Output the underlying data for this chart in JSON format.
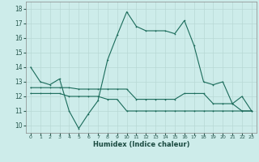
{
  "xlabel": "Humidex (Indice chaleur)",
  "ylabel": "",
  "bg_color": "#cdecea",
  "grid_color": "#b8d8d5",
  "line_color": "#1a6b5a",
  "xlim": [
    -0.5,
    23.5
  ],
  "ylim": [
    9.5,
    18.5
  ],
  "yticks": [
    10,
    11,
    12,
    13,
    14,
    15,
    16,
    17,
    18
  ],
  "xticks": [
    0,
    1,
    2,
    3,
    4,
    5,
    6,
    7,
    8,
    9,
    10,
    11,
    12,
    13,
    14,
    15,
    16,
    17,
    18,
    19,
    20,
    21,
    22,
    23
  ],
  "curve1_x": [
    0,
    1,
    2,
    3,
    4,
    5,
    6,
    7,
    8,
    9,
    10,
    11,
    12,
    13,
    14,
    15,
    16,
    17,
    18,
    19,
    20,
    21,
    22,
    23
  ],
  "curve1_y": [
    14.0,
    13.0,
    12.8,
    13.2,
    11.0,
    9.8,
    10.8,
    11.7,
    14.5,
    16.2,
    17.8,
    16.8,
    16.5,
    16.5,
    16.5,
    16.3,
    17.2,
    15.5,
    13.0,
    12.8,
    13.0,
    11.5,
    12.0,
    11.0
  ],
  "curve2_x": [
    0,
    1,
    2,
    3,
    4,
    5,
    6,
    7,
    8,
    9,
    10,
    11,
    12,
    13,
    14,
    15,
    16,
    17,
    18,
    19,
    20,
    21,
    22,
    23
  ],
  "curve2_y": [
    12.6,
    12.6,
    12.6,
    12.6,
    12.6,
    12.5,
    12.5,
    12.5,
    12.5,
    12.5,
    12.5,
    11.8,
    11.8,
    11.8,
    11.8,
    11.8,
    12.2,
    12.2,
    12.2,
    11.5,
    11.5,
    11.5,
    11.0,
    11.0
  ],
  "curve3_x": [
    0,
    1,
    2,
    3,
    4,
    5,
    6,
    7,
    8,
    9,
    10,
    11,
    12,
    13,
    14,
    15,
    16,
    17,
    18,
    19,
    20,
    21,
    22,
    23
  ],
  "curve3_y": [
    12.2,
    12.2,
    12.2,
    12.2,
    12.0,
    12.0,
    12.0,
    12.0,
    11.8,
    11.8,
    11.0,
    11.0,
    11.0,
    11.0,
    11.0,
    11.0,
    11.0,
    11.0,
    11.0,
    11.0,
    11.0,
    11.0,
    11.0,
    11.0
  ]
}
